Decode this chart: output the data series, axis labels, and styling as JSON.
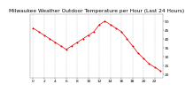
{
  "title": "Milwaukee Weather Outdoor Temperature per Hour (Last 24 Hours)",
  "hours": [
    0,
    1,
    2,
    3,
    4,
    5,
    6,
    7,
    8,
    9,
    10,
    11,
    12,
    13,
    14,
    15,
    16,
    17,
    18,
    19,
    20,
    21,
    22,
    23
  ],
  "temps": [
    46,
    44,
    42,
    40,
    38,
    36,
    34,
    36,
    38,
    40,
    42,
    44,
    48,
    50,
    48,
    46,
    44,
    40,
    36,
    32,
    29,
    26,
    24,
    22
  ],
  "line_color": "#dd0000",
  "marker_color": "#dd0000",
  "bg_color": "#ffffff",
  "plot_bg_color": "#ffffff",
  "text_color": "#000000",
  "grid_color": "#aaaaaa",
  "ylim": [
    18,
    54
  ],
  "yticks": [
    20,
    25,
    30,
    35,
    40,
    45,
    50
  ],
  "title_fontsize": 4.2,
  "tick_fontsize": 3.2,
  "xtick_step": 2
}
